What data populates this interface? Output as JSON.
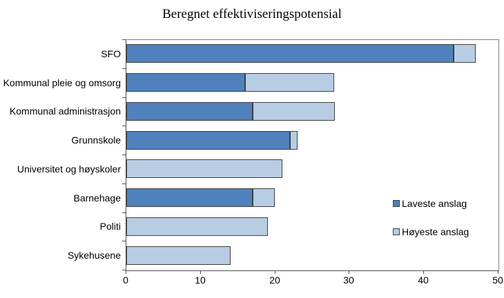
{
  "chart_data": {
    "type": "bar",
    "orientation": "horizontal",
    "stacked": true,
    "title": "Beregnet effektiviseringspotensial",
    "categories": [
      "SFO",
      "Kommunal pleie og omsorg",
      "Kommunal administrasjon",
      "Grunnskole",
      "Universitet og høyskoler",
      "Barnehage",
      "Politi",
      "Sykehusene"
    ],
    "series": [
      {
        "name": "Laveste anslag",
        "color": "#4F81BD",
        "values": [
          44,
          16,
          17,
          22,
          null,
          17,
          null,
          null
        ]
      },
      {
        "name": "Høyeste anslag",
        "color": "#B8CCE4",
        "values": [
          47,
          28,
          28,
          23,
          21,
          20,
          19,
          14
        ]
      }
    ],
    "xlabel": "",
    "ylabel": "",
    "xlim": [
      0,
      50
    ],
    "xticks": [
      0,
      10,
      20,
      30,
      40,
      50
    ],
    "grid": false,
    "legend_position": "right-middle",
    "colors": {
      "laveste": "#4F81BD",
      "hoyeste": "#B8CCE4",
      "bar_border": "#404040",
      "plot_border": "#808080",
      "axis": "#4D4D4D",
      "text": "#000000",
      "background": "#FFFFFF"
    }
  }
}
